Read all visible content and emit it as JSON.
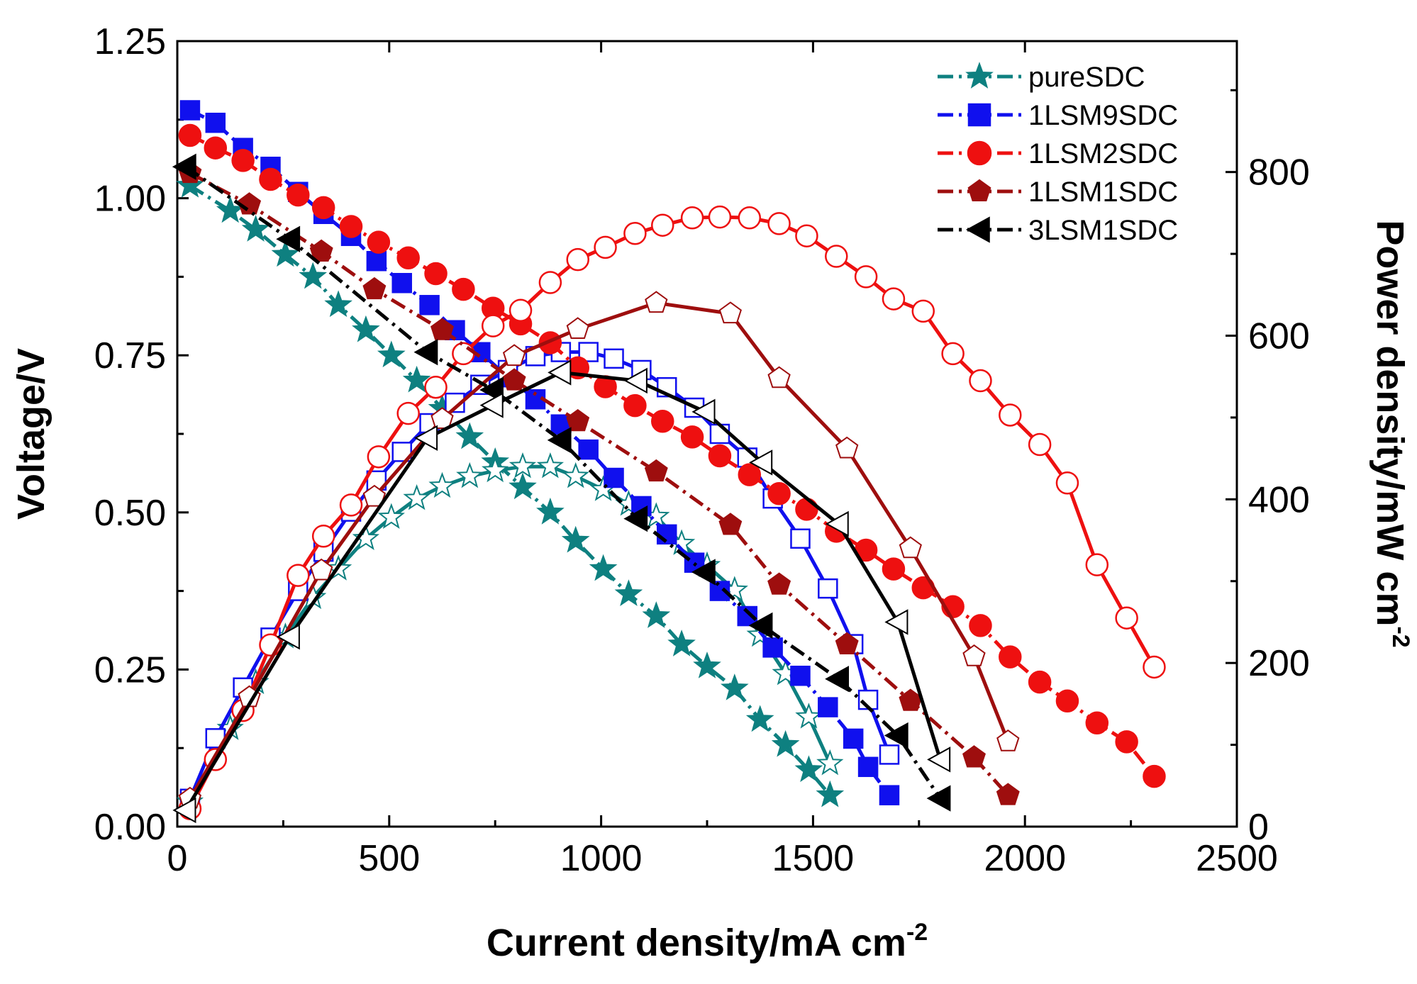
{
  "chart_data": {
    "type": "line",
    "xlabel": {
      "main": "Current density/mA cm",
      "sup": "-2"
    },
    "ylabel_left": "Voltage/V",
    "ylabel_right": {
      "main": "Power density/mW cm",
      "sup": "-2"
    },
    "xlim": [
      0,
      2500
    ],
    "ylim_left": [
      0,
      1.25
    ],
    "ylim_right": [
      0,
      960
    ],
    "x_ticks": [
      "0",
      "500",
      "1000",
      "1500",
      "2000",
      "2500"
    ],
    "y_left_ticks": [
      "0.00",
      "0.25",
      "0.50",
      "0.75",
      "1.00",
      "1.25"
    ],
    "y_right_ticks": [
      "0",
      "200",
      "400",
      "600",
      "800"
    ],
    "legend": {
      "position": "top-right"
    },
    "series": [
      {
        "name": "pureSDC",
        "color": "#0e8080",
        "marker": "star",
        "voltage": {
          "x": [
            30,
            125,
            185,
            255,
            320,
            380,
            445,
            505,
            565,
            625,
            690,
            750,
            815,
            880,
            940,
            1005,
            1065,
            1130,
            1190,
            1250,
            1315,
            1375,
            1435,
            1490,
            1540
          ],
          "y": [
            1.02,
            0.98,
            0.95,
            0.91,
            0.875,
            0.83,
            0.79,
            0.75,
            0.71,
            0.665,
            0.62,
            0.58,
            0.54,
            0.5,
            0.455,
            0.41,
            0.37,
            0.335,
            0.29,
            0.255,
            0.22,
            0.17,
            0.13,
            0.09,
            0.05
          ]
        },
        "power": {
          "x": [
            30,
            125,
            185,
            255,
            320,
            380,
            445,
            505,
            565,
            625,
            690,
            750,
            815,
            880,
            940,
            1005,
            1065,
            1130,
            1190,
            1250,
            1315,
            1375,
            1435,
            1490,
            1540
          ],
          "y": [
            30,
            120,
            176,
            232,
            280,
            315,
            352,
            378,
            401,
            416,
            428,
            435,
            440,
            440,
            428,
            412,
            394,
            379,
            346,
            319,
            289,
            234,
            187,
            134,
            77
          ]
        }
      },
      {
        "name": "1LSM9SDC",
        "color": "#1010ee",
        "marker": "square",
        "voltage": {
          "x": [
            30,
            90,
            155,
            220,
            285,
            345,
            410,
            470,
            530,
            595,
            655,
            715,
            780,
            845,
            905,
            970,
            1030,
            1095,
            1155,
            1220,
            1280,
            1345,
            1405,
            1470,
            1535,
            1595,
            1630,
            1680
          ],
          "y": [
            1.14,
            1.12,
            1.08,
            1.05,
            1.01,
            0.975,
            0.94,
            0.9,
            0.865,
            0.83,
            0.79,
            0.755,
            0.715,
            0.68,
            0.64,
            0.6,
            0.555,
            0.51,
            0.465,
            0.42,
            0.375,
            0.335,
            0.285,
            0.24,
            0.19,
            0.14,
            0.095,
            0.05
          ]
        },
        "power": {
          "x": [
            30,
            90,
            155,
            220,
            285,
            345,
            410,
            470,
            530,
            595,
            655,
            715,
            780,
            845,
            905,
            970,
            1030,
            1095,
            1155,
            1220,
            1280,
            1345,
            1405,
            1470,
            1535,
            1595,
            1630,
            1680
          ],
          "y": [
            34,
            108,
            170,
            231,
            288,
            336,
            385,
            423,
            458,
            493,
            518,
            540,
            558,
            575,
            580,
            580,
            572,
            558,
            537,
            512,
            480,
            451,
            401,
            352,
            291,
            223,
            155,
            88
          ]
        }
      },
      {
        "name": "1LSM2SDC",
        "color": "#ee1010",
        "marker": "circle",
        "voltage": {
          "x": [
            30,
            90,
            155,
            220,
            285,
            345,
            410,
            475,
            545,
            610,
            675,
            745,
            810,
            880,
            945,
            1010,
            1080,
            1145,
            1215,
            1280,
            1350,
            1420,
            1485,
            1555,
            1625,
            1690,
            1760,
            1830,
            1895,
            1965,
            2035,
            2100,
            2170,
            2240,
            2305
          ],
          "y": [
            1.1,
            1.08,
            1.06,
            1.03,
            1.005,
            0.985,
            0.955,
            0.93,
            0.905,
            0.88,
            0.855,
            0.825,
            0.8,
            0.77,
            0.73,
            0.7,
            0.67,
            0.645,
            0.62,
            0.59,
            0.56,
            0.53,
            0.505,
            0.47,
            0.44,
            0.41,
            0.38,
            0.35,
            0.32,
            0.27,
            0.23,
            0.2,
            0.165,
            0.135,
            0.08
          ]
        },
        "power": {
          "x": [
            30,
            90,
            155,
            220,
            285,
            345,
            410,
            475,
            545,
            610,
            675,
            745,
            810,
            880,
            945,
            1010,
            1080,
            1145,
            1215,
            1280,
            1350,
            1420,
            1485,
            1555,
            1625,
            1690,
            1760,
            1830,
            1895,
            1965,
            2035,
            2100,
            2170,
            2240,
            2305
          ],
          "y": [
            22,
            82,
            142,
            222,
            307,
            355,
            393,
            452,
            505,
            537,
            578,
            612,
            631,
            665,
            693,
            708,
            725,
            735,
            744,
            745,
            744,
            737,
            722,
            697,
            672,
            645,
            630,
            578,
            545,
            503,
            467,
            420,
            320,
            255,
            195
          ]
        }
      },
      {
        "name": "1LSM1SDC",
        "color": "#9e0e0e",
        "marker": "pentagon",
        "voltage": {
          "x": [
            30,
            170,
            340,
            465,
            625,
            795,
            945,
            1130,
            1305,
            1420,
            1580,
            1730,
            1880,
            1960
          ],
          "y": [
            1.04,
            0.99,
            0.915,
            0.855,
            0.79,
            0.71,
            0.645,
            0.565,
            0.48,
            0.385,
            0.29,
            0.2,
            0.11,
            0.05
          ]
        },
        "power": {
          "x": [
            30,
            170,
            340,
            465,
            625,
            795,
            945,
            1130,
            1305,
            1420,
            1580,
            1730,
            1880,
            1960
          ],
          "y": [
            34,
            158,
            313,
            403,
            498,
            575,
            608,
            640,
            627,
            548,
            462,
            340,
            208,
            104
          ]
        }
      },
      {
        "name": "3LSM1SDC",
        "color": "#000000",
        "marker": "triangle-left",
        "voltage": {
          "x": [
            20,
            265,
            590,
            745,
            905,
            1085,
            1245,
            1380,
            1560,
            1700,
            1800
          ],
          "y": [
            1.05,
            0.935,
            0.755,
            0.695,
            0.615,
            0.49,
            0.405,
            0.32,
            0.235,
            0.145,
            0.045
          ]
        },
        "power": {
          "x": [
            20,
            265,
            590,
            745,
            905,
            1085,
            1245,
            1380,
            1560,
            1700,
            1800
          ],
          "y": [
            20,
            232,
            475,
            515,
            555,
            545,
            507,
            445,
            370,
            250,
            82
          ]
        }
      }
    ]
  }
}
